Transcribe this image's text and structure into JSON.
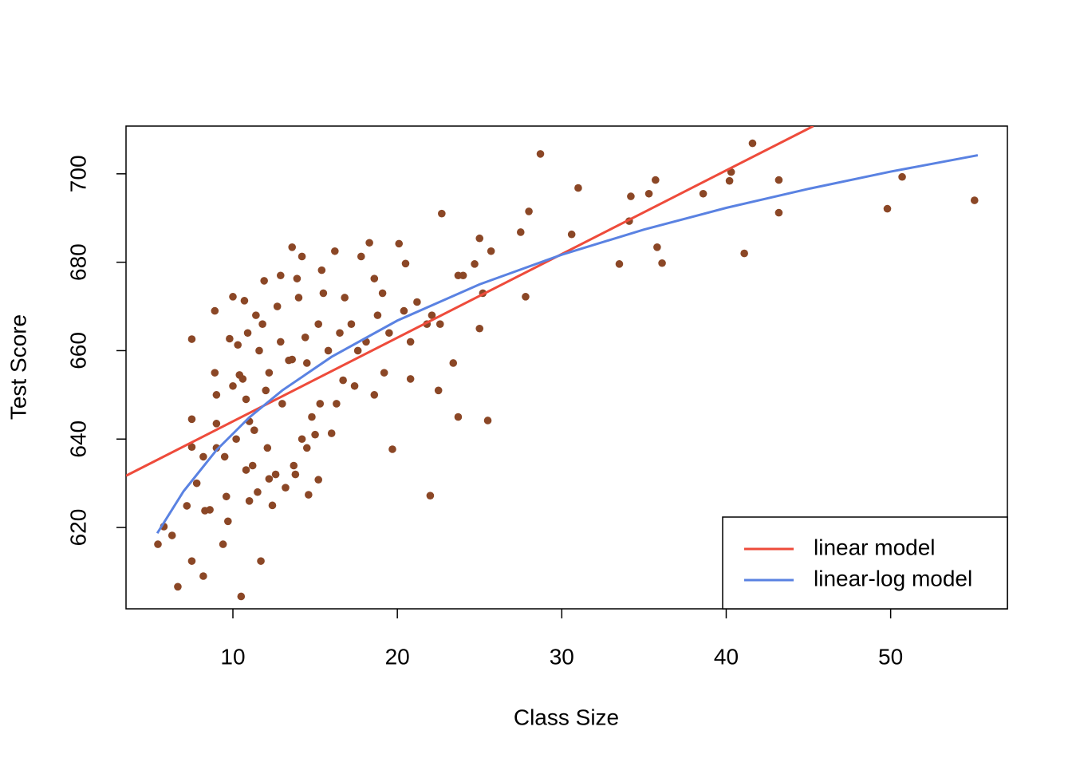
{
  "chart_data": {
    "type": "scatter",
    "x_label": "Class Size",
    "y_label": "Test Score",
    "xlim": [
      3.5,
      57.1
    ],
    "ylim": [
      601.6,
      710.8
    ],
    "xticks": [
      10,
      20,
      30,
      40,
      50
    ],
    "yticks": [
      620,
      640,
      660,
      680,
      700
    ],
    "grid": false,
    "legend": "bottom-right",
    "points": {
      "color": "#8b4726",
      "x": [
        5.44,
        5.8,
        6.3,
        6.65,
        7.2,
        7.5,
        7.5,
        7.5,
        7.5,
        8.2,
        8.3,
        8.9,
        8.9,
        9.0,
        9.0,
        9.4,
        9.7,
        9.8,
        10,
        10.3,
        10.5,
        10.4,
        10.6,
        10.7,
        10.8,
        11.0,
        11.2,
        11.4,
        11.7,
        11.9,
        12.0,
        12.4,
        12.9,
        13.4,
        13.6,
        13.9,
        14.2,
        14.5,
        14.6,
        15.2,
        15.4,
        16.0,
        16.2,
        16.7,
        17.8,
        18.3,
        18.6,
        19.1,
        19.7,
        20.1,
        20.5,
        20.8,
        22.0,
        22.5,
        22.7,
        23.4,
        23.7,
        23.7,
        24.7,
        25.0,
        25.0,
        25.5,
        25.7,
        27.5,
        27.8,
        28.0,
        28.7,
        30.6,
        31.0,
        33.5,
        34.1,
        34.2,
        35.3,
        35.7,
        35.8,
        36.1,
        38.6,
        40.2,
        40.3,
        41.1,
        41.6,
        43.2,
        43.2,
        49.8,
        50.7,
        55.1,
        9.5,
        10.2,
        10.8,
        11.5,
        11.3,
        12.1,
        12.6,
        13.2,
        13.7,
        14.2,
        14.8,
        15.3,
        13.0,
        12.2,
        11.6,
        10.9,
        12.9,
        13.6,
        14.4,
        15.2,
        15.8,
        16.5,
        17.2,
        17.6,
        18.1,
        18.8,
        19.5,
        20.4,
        21.2,
        22.1,
        22.6,
        16.8,
        15.5,
        14.0,
        12.7,
        11.8,
        10.0,
        9.0,
        8.2,
        7.8,
        8.6,
        9.6,
        11.0,
        12.2,
        13.8,
        14.5,
        15.0,
        16.3,
        17.4,
        18.6,
        19.2,
        20.8,
        21.8,
        24.0,
        25.2
      ],
      "values": [
        616.2,
        620.2,
        618.2,
        606.6,
        624.9,
        662.6,
        644.5,
        638.2,
        612.4,
        609.0,
        623.8,
        669,
        655,
        650,
        643.5,
        616.2,
        621.4,
        662.7,
        672.2,
        661.3,
        604.4,
        654.5,
        653.6,
        671.3,
        649,
        644,
        634,
        668,
        612.4,
        675.8,
        651,
        625,
        677,
        657.8,
        683.4,
        676.3,
        681.3,
        657.2,
        627.4,
        630.8,
        678.2,
        641.3,
        682.5,
        653.3,
        681.3,
        684.4,
        676.3,
        673,
        637.7,
        684.2,
        679.7,
        653.6,
        627.2,
        651,
        691,
        657.2,
        645,
        677,
        679.6,
        685.4,
        665,
        644.2,
        682.5,
        686.8,
        672.2,
        691.5,
        704.5,
        686.3,
        696.8,
        679.6,
        689.3,
        694.9,
        695.5,
        698.6,
        683.4,
        679.8,
        695.5,
        698.4,
        700.4,
        682.0,
        706.9,
        698.6,
        691.2,
        692.1,
        699.3,
        694,
        636,
        640,
        633,
        628,
        642,
        638,
        632,
        629,
        634,
        640,
        645,
        648,
        648,
        655,
        660,
        664,
        662,
        658,
        663,
        666,
        660,
        664,
        666,
        660,
        662,
        668,
        664,
        669,
        671,
        668,
        666,
        672,
        673,
        672,
        670,
        666,
        652,
        638,
        636,
        630,
        624,
        627,
        626,
        631,
        632,
        638,
        641,
        648,
        652,
        650,
        655,
        662,
        666,
        677,
        673
      ]
    },
    "series": [
      {
        "name": "linear model",
        "color": "#ee4b3b",
        "x": [
          3.5,
          45.3
        ],
        "values": [
          631.7,
          710.8
        ]
      },
      {
        "name": "linear-log model",
        "color": "#5a82e2",
        "x": [
          5.4,
          7,
          9,
          11,
          13,
          16,
          20,
          25,
          30,
          35,
          40,
          45,
          50,
          55.3
        ],
        "values": [
          618.7,
          628.2,
          637.5,
          644.9,
          651.0,
          658.6,
          666.8,
          675.0,
          681.7,
          687.4,
          692.3,
          696.6,
          700.5,
          704.2
        ]
      }
    ]
  }
}
